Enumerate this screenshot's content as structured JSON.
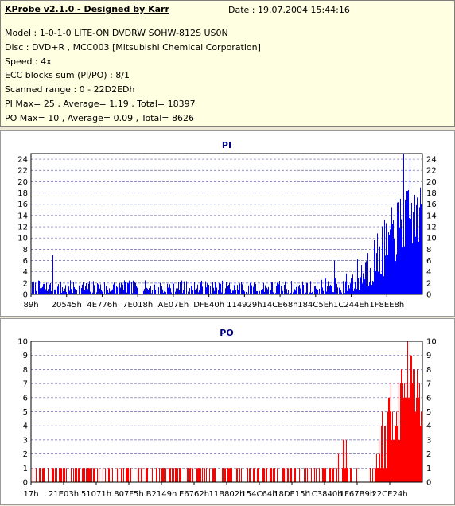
{
  "header": {
    "title": "KProbe v2.1.0 - Designed by Karr",
    "date": "Date : 19.07.2004 15:44:16",
    "lines": [
      "Model : 1-0-1-0 LITE-ON DVDRW SOHW-812S  US0N",
      "Disc : DVD+R , MCC003 [Mitsubishi Chemical Corporation]",
      "Speed : 4x",
      "ECC blocks sum (PI/PO) : 8/1",
      "Scanned range : 0 - 22D2EDh",
      "PI Max= 25 , Average= 1.19 , Total= 18397",
      "PO Max= 10 , Average= 0.09 , Total= 8626"
    ]
  },
  "chart_data": [
    {
      "type": "bar",
      "title": "PI",
      "color": "#0000ff",
      "ylim": [
        0,
        25
      ],
      "yticks": [
        0,
        2,
        4,
        6,
        8,
        10,
        12,
        14,
        16,
        18,
        20,
        22,
        24
      ],
      "xticks": [
        "89h",
        "20545h",
        "4E776h",
        "7E018h",
        "AE07Eh",
        "DFE40h",
        "114929h",
        "14CE68h",
        "184C5Eh",
        "1C244Eh",
        "1F8EE8h"
      ],
      "profile": [
        {
          "x": 0.0,
          "base": 1.0,
          "amp": 1.5
        },
        {
          "x": 0.72,
          "base": 1.0,
          "amp": 1.5
        },
        {
          "x": 0.76,
          "base": 1.5,
          "amp": 2.0
        },
        {
          "x": 0.79,
          "base": 1.2,
          "amp": 1.5
        },
        {
          "x": 0.85,
          "base": 4.0,
          "amp": 4.0
        },
        {
          "x": 0.9,
          "base": 8.0,
          "amp": 5.0
        },
        {
          "x": 0.95,
          "base": 13.0,
          "amp": 6.0
        },
        {
          "x": 1.0,
          "base": 14.0,
          "amp": 5.0
        }
      ],
      "peaks": [
        {
          "x": 0.055,
          "value": 7
        },
        {
          "x": 0.775,
          "value": 6
        },
        {
          "x": 0.952,
          "value": 25
        },
        {
          "x": 0.968,
          "value": 24
        }
      ]
    },
    {
      "type": "bar",
      "title": "PO",
      "color": "#ff0000",
      "ylim": [
        0,
        10
      ],
      "yticks": [
        0,
        1,
        2,
        3,
        4,
        5,
        6,
        7,
        8,
        9,
        10
      ],
      "xticks": [
        "17h",
        "21E03h",
        "51071h",
        "807F5h",
        "B2149h",
        "E6762h",
        "11B802h",
        "154C64h",
        "18DE15h",
        "1C3840h",
        "1F67B9h",
        "22CE24h"
      ],
      "profile": [
        {
          "x": 0.0,
          "base": 0.4,
          "amp": 0.8
        },
        {
          "x": 0.78,
          "base": 0.4,
          "amp": 0.8
        },
        {
          "x": 0.8,
          "base": 1.5,
          "amp": 1.5
        },
        {
          "x": 0.815,
          "base": 0.3,
          "amp": 0.7
        },
        {
          "x": 0.86,
          "base": 0.0,
          "amp": 0.5
        },
        {
          "x": 0.88,
          "base": 2.0,
          "amp": 2.0
        },
        {
          "x": 0.93,
          "base": 5.0,
          "amp": 3.0
        },
        {
          "x": 0.97,
          "base": 8.0,
          "amp": 2.0
        },
        {
          "x": 1.0,
          "base": 5.0,
          "amp": 1.5
        }
      ],
      "peaks": [
        {
          "x": 0.805,
          "value": 3
        },
        {
          "x": 0.962,
          "value": 10
        },
        {
          "x": 0.972,
          "value": 9
        }
      ]
    }
  ]
}
